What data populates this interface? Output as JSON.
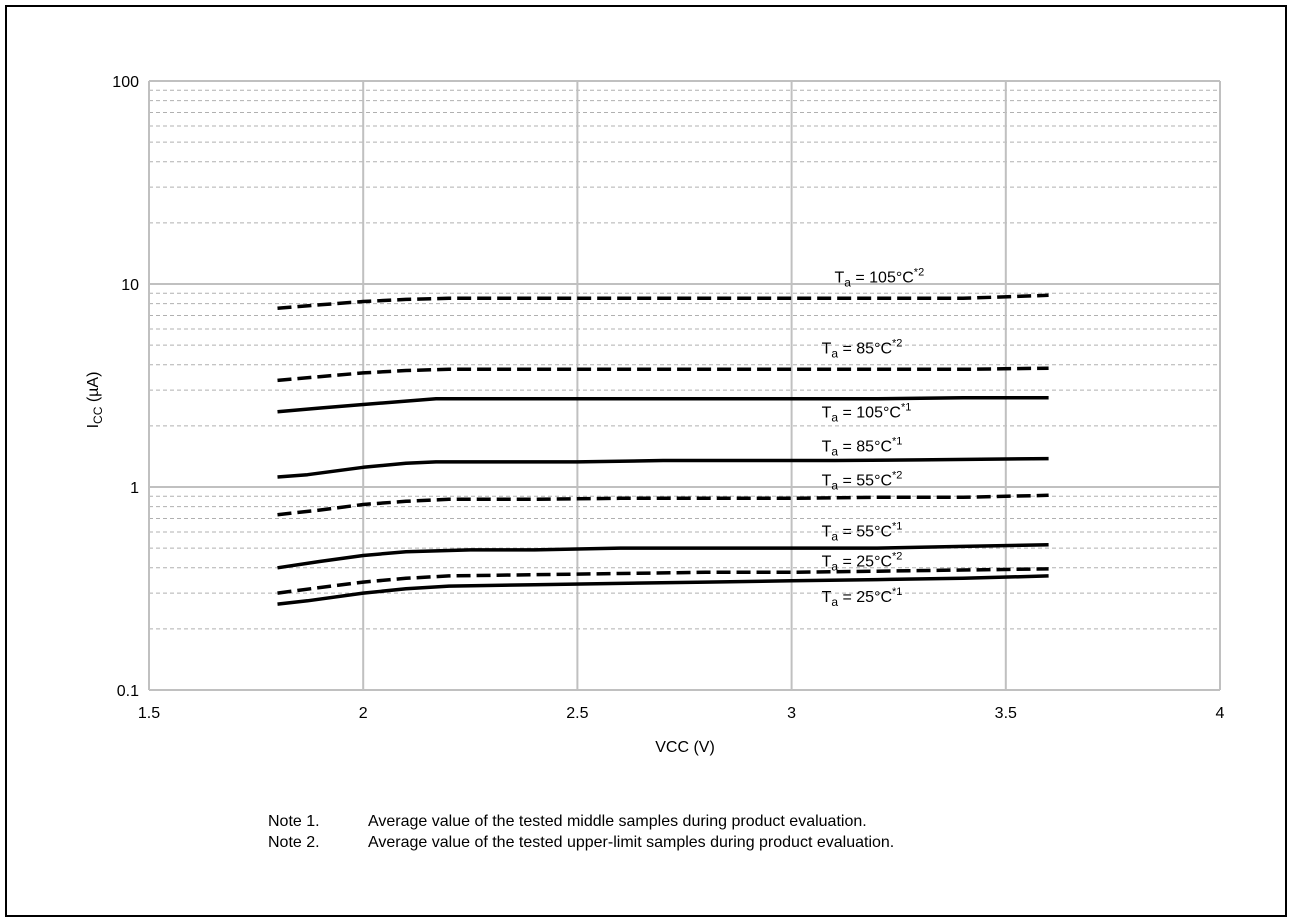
{
  "chart_data": {
    "type": "line",
    "xlabel": "VCC (V)",
    "ylabel": {
      "main": "I",
      "sub": "CC",
      "rest": " (µA)"
    },
    "xlim": [
      1.5,
      4
    ],
    "ylim": [
      0.1,
      100
    ],
    "y_scale": "log",
    "x_ticks": [
      {
        "v": 1.5,
        "label": "1.5"
      },
      {
        "v": 2,
        "label": "2"
      },
      {
        "v": 2.5,
        "label": "2.5"
      },
      {
        "v": 3,
        "label": "3"
      },
      {
        "v": 3.5,
        "label": "3.5"
      },
      {
        "v": 4,
        "label": "4"
      }
    ],
    "y_ticks": [
      {
        "v": 0.1,
        "label": "0.1"
      },
      {
        "v": 1,
        "label": "1"
      },
      {
        "v": 10,
        "label": "10"
      },
      {
        "v": 100,
        "label": "100"
      }
    ],
    "grid": true,
    "series": [
      {
        "style": "dashed",
        "label": {
          "main": "T",
          "sub": "a",
          "rest": " = 105°C",
          "sup": "*2"
        },
        "label_pos": [
          3.1,
          10.2
        ],
        "x": [
          1.8,
          1.9,
          2.0,
          2.1,
          2.2,
          2.4,
          2.6,
          2.8,
          3.0,
          3.2,
          3.4,
          3.6
        ],
        "y": [
          7.6,
          7.9,
          8.2,
          8.4,
          8.5,
          8.5,
          8.5,
          8.5,
          8.5,
          8.5,
          8.5,
          8.8
        ]
      },
      {
        "style": "dashed",
        "label": {
          "main": "T",
          "sub": "a",
          "rest": " = 85°C",
          "sup": "*2"
        },
        "label_pos": [
          3.07,
          4.55
        ],
        "x": [
          1.8,
          1.9,
          2.0,
          2.1,
          2.2,
          2.4,
          2.6,
          2.8,
          3.0,
          3.2,
          3.4,
          3.6
        ],
        "y": [
          3.35,
          3.5,
          3.65,
          3.75,
          3.8,
          3.8,
          3.8,
          3.8,
          3.8,
          3.8,
          3.8,
          3.85
        ]
      },
      {
        "style": "solid",
        "label": {
          "main": "T",
          "sub": "a",
          "rest": " = 105°C",
          "sup": "*1"
        },
        "label_pos": [
          3.07,
          2.2
        ],
        "x": [
          1.8,
          1.9,
          2.0,
          2.1,
          2.17,
          2.4,
          2.6,
          2.8,
          3.0,
          3.2,
          3.4,
          3.6
        ],
        "y": [
          2.35,
          2.45,
          2.55,
          2.65,
          2.72,
          2.72,
          2.72,
          2.72,
          2.72,
          2.72,
          2.75,
          2.75
        ]
      },
      {
        "style": "solid",
        "label": {
          "main": "T",
          "sub": "a",
          "rest": " = 85°C",
          "sup": "*1"
        },
        "label_pos": [
          3.07,
          1.5
        ],
        "x": [
          1.8,
          1.87,
          2.0,
          2.1,
          2.17,
          2.3,
          2.5,
          2.7,
          2.9,
          3.1,
          3.3,
          3.6
        ],
        "y": [
          1.12,
          1.15,
          1.25,
          1.31,
          1.33,
          1.33,
          1.33,
          1.35,
          1.35,
          1.35,
          1.36,
          1.38
        ]
      },
      {
        "style": "dashed",
        "label": {
          "main": "T",
          "sub": "a",
          "rest": " = 55°C",
          "sup": "*2"
        },
        "label_pos": [
          3.07,
          1.02
        ],
        "x": [
          1.8,
          1.9,
          2.0,
          2.1,
          2.2,
          2.4,
          2.6,
          2.8,
          3.0,
          3.2,
          3.4,
          3.6
        ],
        "y": [
          0.73,
          0.77,
          0.82,
          0.85,
          0.87,
          0.87,
          0.88,
          0.88,
          0.88,
          0.89,
          0.89,
          0.91
        ]
      },
      {
        "style": "solid",
        "label": {
          "main": "T",
          "sub": "a",
          "rest": " = 55°C",
          "sup": "*1"
        },
        "label_pos": [
          3.07,
          0.57
        ],
        "x": [
          1.8,
          1.9,
          2.0,
          2.1,
          2.25,
          2.4,
          2.6,
          2.8,
          3.0,
          3.2,
          3.4,
          3.6
        ],
        "y": [
          0.4,
          0.43,
          0.46,
          0.48,
          0.49,
          0.49,
          0.5,
          0.5,
          0.5,
          0.5,
          0.51,
          0.52
        ]
      },
      {
        "style": "dashed",
        "label": {
          "main": "T",
          "sub": "a",
          "rest": " = 25°C",
          "sup": "*2"
        },
        "label_pos": [
          3.07,
          0.405
        ],
        "x": [
          1.8,
          1.9,
          2.0,
          2.1,
          2.2,
          2.4,
          2.6,
          2.8,
          3.0,
          3.2,
          3.4,
          3.6
        ],
        "y": [
          0.3,
          0.32,
          0.34,
          0.355,
          0.365,
          0.37,
          0.375,
          0.38,
          0.38,
          0.385,
          0.39,
          0.395
        ]
      },
      {
        "style": "solid",
        "label": {
          "main": "T",
          "sub": "a",
          "rest": " = 25°C",
          "sup": "*1"
        },
        "label_pos": [
          3.07,
          0.272
        ],
        "x": [
          1.8,
          1.87,
          2.0,
          2.1,
          2.2,
          2.4,
          2.6,
          2.8,
          3.0,
          3.2,
          3.4,
          3.6
        ],
        "y": [
          0.265,
          0.275,
          0.3,
          0.315,
          0.325,
          0.33,
          0.335,
          0.34,
          0.345,
          0.35,
          0.355,
          0.365
        ]
      }
    ]
  },
  "notes": [
    {
      "num": "Note 1.",
      "text": "Average value of the tested middle samples during product evaluation."
    },
    {
      "num": "Note 2.",
      "text": "Average value of the tested upper-limit samples during product evaluation."
    }
  ]
}
